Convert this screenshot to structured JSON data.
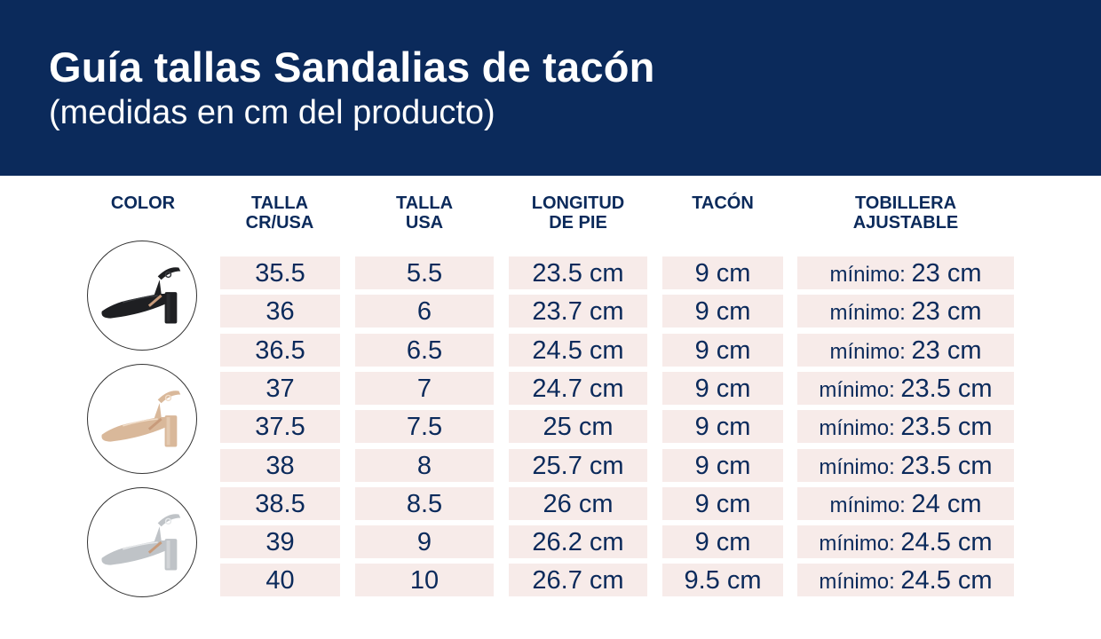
{
  "header": {
    "title": "Guía tallas Sandalias de tacón",
    "subtitle": "(medidas en cm del producto)"
  },
  "columns": [
    "COLOR",
    "TALLA\nCR/USA",
    "TALLA\nUSA",
    "LONGITUD\nDE PIE",
    "TACÓN",
    "TOBILLERA\nAJUSTABLE"
  ],
  "colors": [
    {
      "name": "black-shoe",
      "fill": "#1e1f22",
      "light": "#3a3c40"
    },
    {
      "name": "gold-shoe",
      "fill": "#d9b89a",
      "light": "#f0dcc8"
    },
    {
      "name": "silver-shoe",
      "fill": "#bfc3c7",
      "light": "#e6e8ea"
    }
  ],
  "minimo_label": "mínimo:",
  "rows": [
    {
      "cr": "35.5",
      "usa": "5.5",
      "pie": "23.5 cm",
      "tacon": "9 cm",
      "tobillera": "23 cm"
    },
    {
      "cr": "36",
      "usa": "6",
      "pie": "23.7 cm",
      "tacon": "9 cm",
      "tobillera": "23 cm"
    },
    {
      "cr": "36.5",
      "usa": "6.5",
      "pie": "24.5 cm",
      "tacon": "9 cm",
      "tobillera": "23 cm"
    },
    {
      "cr": "37",
      "usa": "7",
      "pie": "24.7 cm",
      "tacon": "9 cm",
      "tobillera": "23.5 cm"
    },
    {
      "cr": "37.5",
      "usa": "7.5",
      "pie": "25 cm",
      "tacon": "9 cm",
      "tobillera": "23.5 cm"
    },
    {
      "cr": "38",
      "usa": "8",
      "pie": "25.7 cm",
      "tacon": "9 cm",
      "tobillera": "23.5 cm"
    },
    {
      "cr": "38.5",
      "usa": "8.5",
      "pie": "26 cm",
      "tacon": "9 cm",
      "tobillera": "24 cm"
    },
    {
      "cr": "39",
      "usa": "9",
      "pie": "26.2 cm",
      "tacon": "9 cm",
      "tobillera": "24.5 cm"
    },
    {
      "cr": "40",
      "usa": "10",
      "pie": "26.7 cm",
      "tacon": "9.5 cm",
      "tobillera": "24.5 cm"
    }
  ]
}
